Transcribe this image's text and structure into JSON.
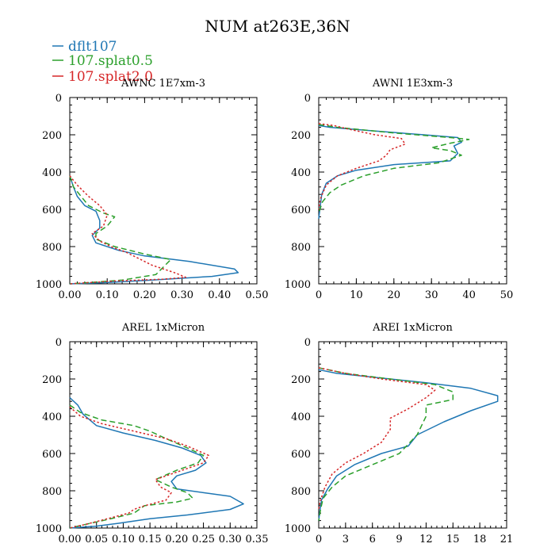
{
  "figure_title": "NUM at263E,36N",
  "legend": [
    {
      "label": "dflt107",
      "color": "#1f77b4",
      "dash": "solid"
    },
    {
      "label": "107.splat0.5",
      "color": "#2ca02c",
      "dash": "dashed"
    },
    {
      "label": "107.splat2.0",
      "color": "#d62728",
      "dash": "dotted"
    }
  ],
  "chart_data": [
    {
      "type": "line",
      "title": "AWNC  1E7xm-3",
      "xlim": [
        0,
        0.5
      ],
      "ylim": [
        0,
        1000
      ],
      "y_inverted": true,
      "xticks": [
        0,
        0.1,
        0.2,
        0.3,
        0.4,
        0.5
      ],
      "xtick_labels": [
        "0.00",
        "0.10",
        "0.20",
        "0.30",
        "0.40",
        "0.50"
      ],
      "yticks": [
        0,
        200,
        400,
        600,
        800,
        1000
      ],
      "ytick_labels": [
        "0",
        "200",
        "400",
        "600",
        "800",
        "1000"
      ],
      "series": [
        {
          "name": "dflt107",
          "points": [
            [
              0,
              420
            ],
            [
              0.01,
              480
            ],
            [
              0.02,
              530
            ],
            [
              0.04,
              580
            ],
            [
              0.07,
              610
            ],
            [
              0.08,
              660
            ],
            [
              0.08,
              700
            ],
            [
              0.06,
              740
            ],
            [
              0.07,
              780
            ],
            [
              0.13,
              820
            ],
            [
              0.2,
              850
            ],
            [
              0.32,
              880
            ],
            [
              0.44,
              920
            ],
            [
              0.45,
              940
            ],
            [
              0.38,
              960
            ],
            [
              0.22,
              980
            ],
            [
              0.08,
              995
            ],
            [
              0,
              1000
            ]
          ]
        },
        {
          "name": "107.splat0.5",
          "points": [
            [
              0,
              420
            ],
            [
              0.01,
              480
            ],
            [
              0.03,
              530
            ],
            [
              0.05,
              580
            ],
            [
              0.09,
              620
            ],
            [
              0.12,
              640
            ],
            [
              0.1,
              690
            ],
            [
              0.07,
              730
            ],
            [
              0.07,
              760
            ],
            [
              0.12,
              800
            ],
            [
              0.2,
              840
            ],
            [
              0.27,
              870
            ],
            [
              0.25,
              910
            ],
            [
              0.23,
              950
            ],
            [
              0.14,
              980
            ],
            [
              0.04,
              995
            ],
            [
              0,
              1000
            ]
          ]
        },
        {
          "name": "107.splat2.0",
          "points": [
            [
              0,
              420
            ],
            [
              0.02,
              470
            ],
            [
              0.05,
              530
            ],
            [
              0.08,
              580
            ],
            [
              0.1,
              630
            ],
            [
              0.09,
              690
            ],
            [
              0.06,
              730
            ],
            [
              0.08,
              770
            ],
            [
              0.11,
              800
            ],
            [
              0.15,
              830
            ],
            [
              0.18,
              860
            ],
            [
              0.22,
              900
            ],
            [
              0.28,
              940
            ],
            [
              0.31,
              965
            ],
            [
              0.25,
              975
            ],
            [
              0.12,
              985
            ],
            [
              0.04,
              995
            ],
            [
              0,
              1000
            ]
          ]
        }
      ]
    },
    {
      "type": "line",
      "title": "AWNI  1E3xm-3",
      "xlim": [
        0,
        50
      ],
      "ylim": [
        0,
        1000
      ],
      "y_inverted": true,
      "xticks": [
        0,
        10,
        20,
        30,
        40,
        50
      ],
      "xtick_labels": [
        "0",
        "10",
        "20",
        "30",
        "40",
        "50"
      ],
      "yticks": [
        0,
        200,
        400,
        600,
        800,
        1000
      ],
      "ytick_labels": [
        "0",
        "200",
        "400",
        "600",
        "800",
        "1000"
      ],
      "series": [
        {
          "name": "dflt107",
          "points": [
            [
              0,
              150
            ],
            [
              3,
              160
            ],
            [
              15,
              180
            ],
            [
              28,
              200
            ],
            [
              37,
              215
            ],
            [
              38,
              240
            ],
            [
              36,
              260
            ],
            [
              37,
              300
            ],
            [
              35,
              340
            ],
            [
              20,
              360
            ],
            [
              10,
              390
            ],
            [
              5,
              420
            ],
            [
              2,
              460
            ],
            [
              0.8,
              520
            ],
            [
              0.3,
              600
            ],
            [
              0,
              650
            ]
          ]
        },
        {
          "name": "107.splat0.5",
          "points": [
            [
              0,
              145
            ],
            [
              5,
              160
            ],
            [
              20,
              190
            ],
            [
              35,
              215
            ],
            [
              40,
              225
            ],
            [
              35,
              245
            ],
            [
              30,
              270
            ],
            [
              35,
              285
            ],
            [
              38,
              310
            ],
            [
              32,
              350
            ],
            [
              20,
              380
            ],
            [
              12,
              420
            ],
            [
              6,
              470
            ],
            [
              3,
              510
            ],
            [
              1,
              560
            ],
            [
              0,
              620
            ]
          ]
        },
        {
          "name": "107.splat2.0",
          "points": [
            [
              0,
              140
            ],
            [
              4,
              150
            ],
            [
              8,
              170
            ],
            [
              15,
              200
            ],
            [
              22,
              220
            ],
            [
              23,
              250
            ],
            [
              19,
              280
            ],
            [
              18,
              310
            ],
            [
              16,
              340
            ],
            [
              10,
              380
            ],
            [
              5,
              420
            ],
            [
              2,
              470
            ],
            [
              0.5,
              540
            ],
            [
              0,
              600
            ]
          ]
        }
      ]
    },
    {
      "type": "line",
      "title": "AREL  1xMicron",
      "xlim": [
        0,
        0.35
      ],
      "ylim": [
        0,
        1000
      ],
      "y_inverted": true,
      "xticks": [
        0,
        0.05,
        0.1,
        0.15,
        0.2,
        0.25,
        0.3,
        0.35
      ],
      "xtick_labels": [
        "0.00",
        "0.05",
        "0.10",
        "0.15",
        "0.20",
        "0.25",
        "0.30",
        "0.35"
      ],
      "yticks": [
        0,
        200,
        400,
        600,
        800,
        1000
      ],
      "ytick_labels": [
        "0",
        "200",
        "400",
        "600",
        "800",
        "1000"
      ],
      "series": [
        {
          "name": "dflt107",
          "points": [
            [
              0,
              300
            ],
            [
              0.015,
              340
            ],
            [
              0.025,
              390
            ],
            [
              0.05,
              450
            ],
            [
              0.1,
              490
            ],
            [
              0.16,
              530
            ],
            [
              0.21,
              570
            ],
            [
              0.245,
              610
            ],
            [
              0.255,
              650
            ],
            [
              0.235,
              690
            ],
            [
              0.2,
              720
            ],
            [
              0.19,
              750
            ],
            [
              0.2,
              790
            ],
            [
              0.25,
              810
            ],
            [
              0.3,
              830
            ],
            [
              0.325,
              870
            ],
            [
              0.3,
              900
            ],
            [
              0.22,
              930
            ],
            [
              0.15,
              950
            ],
            [
              0.09,
              975
            ],
            [
              0.05,
              990
            ],
            [
              0,
              1000
            ]
          ]
        },
        {
          "name": "107.splat0.5",
          "points": [
            [
              0,
              340
            ],
            [
              0.02,
              380
            ],
            [
              0.06,
              420
            ],
            [
              0.12,
              450
            ],
            [
              0.15,
              480
            ],
            [
              0.18,
              520
            ],
            [
              0.22,
              570
            ],
            [
              0.25,
              610
            ],
            [
              0.24,
              650
            ],
            [
              0.2,
              690
            ],
            [
              0.16,
              740
            ],
            [
              0.19,
              780
            ],
            [
              0.22,
              810
            ],
            [
              0.23,
              840
            ],
            [
              0.2,
              860
            ],
            [
              0.14,
              880
            ],
            [
              0.12,
              920
            ],
            [
              0.07,
              955
            ],
            [
              0.03,
              980
            ],
            [
              0,
              1000
            ]
          ]
        },
        {
          "name": "107.splat2.0",
          "points": [
            [
              0,
              350
            ],
            [
              0.02,
              400
            ],
            [
              0.06,
              440
            ],
            [
              0.12,
              480
            ],
            [
              0.18,
              520
            ],
            [
              0.22,
              560
            ],
            [
              0.26,
              610
            ],
            [
              0.25,
              650
            ],
            [
              0.2,
              700
            ],
            [
              0.16,
              740
            ],
            [
              0.17,
              780
            ],
            [
              0.19,
              810
            ],
            [
              0.18,
              850
            ],
            [
              0.14,
              880
            ],
            [
              0.12,
              900
            ],
            [
              0.11,
              920
            ],
            [
              0.07,
              950
            ],
            [
              0.03,
              980
            ],
            [
              0,
              1000
            ]
          ]
        }
      ]
    },
    {
      "type": "line",
      "title": "AREI  1xMicron",
      "xlim": [
        0,
        21
      ],
      "ylim": [
        0,
        1000
      ],
      "y_inverted": true,
      "xticks": [
        0,
        3,
        6,
        9,
        12,
        15,
        18,
        21
      ],
      "xtick_labels": [
        "0",
        "3",
        "6",
        "9",
        "12",
        "15",
        "18",
        "21"
      ],
      "yticks": [
        0,
        200,
        400,
        600,
        800,
        1000
      ],
      "ytick_labels": [
        "0",
        "200",
        "400",
        "600",
        "800",
        "1000"
      ],
      "series": [
        {
          "name": "dflt107",
          "points": [
            [
              0,
              150
            ],
            [
              2,
              170
            ],
            [
              6,
              190
            ],
            [
              12,
              220
            ],
            [
              17,
              250
            ],
            [
              20,
              290
            ],
            [
              20,
              320
            ],
            [
              17,
              370
            ],
            [
              14,
              430
            ],
            [
              11,
              500
            ],
            [
              10,
              560
            ],
            [
              7,
              600
            ],
            [
              4,
              660
            ],
            [
              2,
              720
            ],
            [
              1,
              790
            ],
            [
              0.3,
              850
            ],
            [
              0.1,
              920
            ],
            [
              0,
              960
            ]
          ]
        },
        {
          "name": "107.splat0.5",
          "points": [
            [
              0,
              140
            ],
            [
              3,
              170
            ],
            [
              8,
              200
            ],
            [
              13,
              230
            ],
            [
              15,
              270
            ],
            [
              15,
              310
            ],
            [
              12,
              340
            ],
            [
              12,
              400
            ],
            [
              11,
              500
            ],
            [
              9,
              600
            ],
            [
              6,
              660
            ],
            [
              3,
              720
            ],
            [
              1.5,
              780
            ],
            [
              0.5,
              840
            ],
            [
              0.2,
              900
            ],
            [
              0,
              960
            ]
          ]
        },
        {
          "name": "107.splat2.0",
          "points": [
            [
              0,
              140
            ],
            [
              3,
              170
            ],
            [
              7,
              200
            ],
            [
              12,
              230
            ],
            [
              13,
              260
            ],
            [
              12,
              300
            ],
            [
              10,
              360
            ],
            [
              8,
              410
            ],
            [
              8,
              470
            ],
            [
              7,
              540
            ],
            [
              5,
              600
            ],
            [
              3,
              650
            ],
            [
              1.5,
              710
            ],
            [
              0.7,
              780
            ],
            [
              0.2,
              850
            ],
            [
              0,
              900
            ]
          ]
        }
      ]
    }
  ]
}
